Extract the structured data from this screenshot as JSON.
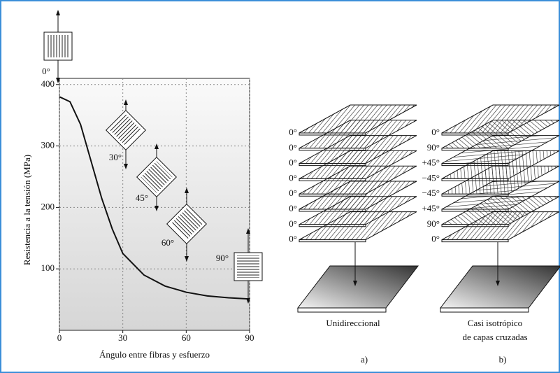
{
  "chart_data": {
    "type": "line",
    "y_label": "Resistencia a la tensión (MPa)",
    "x_label": "Ángulo entre fibras y esfuerzo",
    "x": [
      0,
      5,
      10,
      15,
      20,
      25,
      30,
      40,
      50,
      60,
      70,
      80,
      90
    ],
    "series": [
      {
        "color": "#111111",
        "values": [
          380,
          372,
          335,
          275,
          215,
          165,
          125,
          90,
          72,
          62,
          56,
          53,
          51
        ]
      }
    ],
    "xlim": [
      0,
      90
    ],
    "xticks": [
      0,
      30,
      60,
      90
    ],
    "ylim": [
      0,
      410
    ],
    "yticks": [
      100,
      200,
      300,
      400
    ],
    "grid": true,
    "annotations": [
      "0°",
      "30°",
      "45°",
      "60°",
      "90°"
    ]
  },
  "diagram": {
    "left_labels": [
      "0°",
      "0°",
      "0°",
      "0°",
      "0°",
      "0°",
      "0°",
      "0°"
    ],
    "right_labels": [
      "0°",
      "90°",
      "+45°",
      "−45°",
      "−45°",
      "+45°",
      "90°",
      "0°"
    ],
    "left_caption": "Unidireccional",
    "right_caption": [
      "Casi isotrópico",
      "de capas cruzadas"
    ],
    "left_letter": "a)",
    "right_letter": "b)"
  }
}
